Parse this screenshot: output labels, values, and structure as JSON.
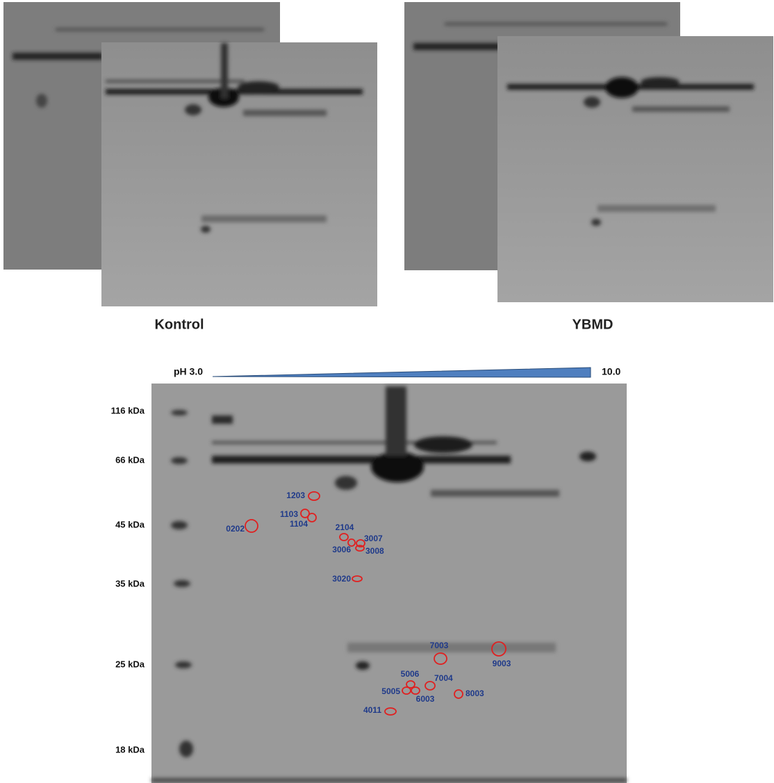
{
  "figure": {
    "captions": [
      "Kontrol",
      "YBMD"
    ],
    "ph": {
      "start": "pH 3.0",
      "end": "10.0"
    },
    "markers": [
      "116 kDa",
      "66 kDa",
      "45 kDa",
      "35 kDa",
      "25 kDa",
      "18 kDa"
    ],
    "spots": [
      "0202",
      "1203",
      "1103",
      "1104",
      "2104",
      "3007",
      "3006",
      "3008",
      "3020",
      "7003",
      "9003",
      "5006",
      "7004",
      "5005",
      "6003",
      "8003",
      "4011"
    ]
  }
}
